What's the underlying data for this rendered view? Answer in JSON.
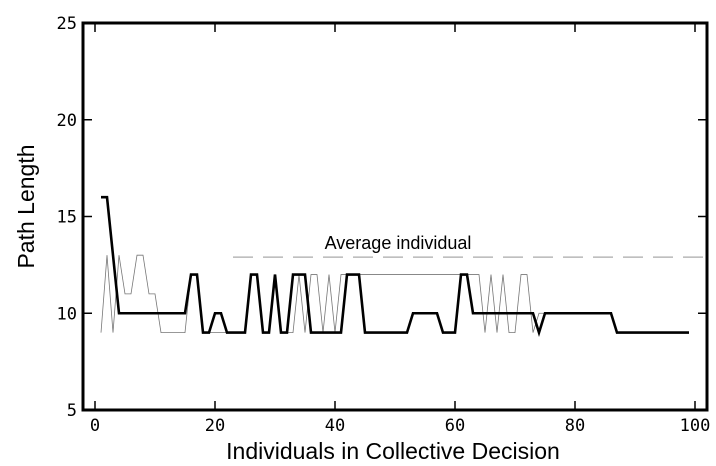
{
  "chart_data": {
    "type": "line",
    "xlabel": "Individuals in Collective Decision",
    "ylabel": "Path Length",
    "xlim": [
      -2,
      102
    ],
    "ylim": [
      5,
      25
    ],
    "xticks": [
      0,
      20,
      40,
      60,
      80,
      100
    ],
    "yticks": [
      5,
      10,
      15,
      20,
      25
    ],
    "grid": false,
    "series": [
      {
        "style": "thin",
        "color": "#777777",
        "points": [
          [
            1,
            9
          ],
          [
            2,
            13
          ],
          [
            3,
            9
          ],
          [
            4,
            13
          ],
          [
            5,
            11
          ],
          [
            6,
            11
          ],
          [
            7,
            13
          ],
          [
            8,
            13
          ],
          [
            9,
            11
          ],
          [
            10,
            11
          ],
          [
            11,
            9
          ],
          [
            12,
            9
          ],
          [
            13,
            9
          ],
          [
            14,
            9
          ],
          [
            15,
            9
          ],
          [
            16,
            12
          ],
          [
            17,
            12
          ],
          [
            18,
            9
          ],
          [
            19,
            9
          ],
          [
            20,
            9
          ],
          [
            21,
            9
          ],
          [
            22,
            9
          ],
          [
            23,
            9
          ],
          [
            24,
            9
          ],
          [
            25,
            9
          ],
          [
            26,
            12
          ],
          [
            27,
            12
          ],
          [
            28,
            9
          ],
          [
            29,
            9
          ],
          [
            30,
            12
          ],
          [
            31,
            9
          ],
          [
            32,
            9
          ],
          [
            33,
            9
          ],
          [
            34,
            12
          ],
          [
            35,
            9
          ],
          [
            36,
            12
          ],
          [
            37,
            12
          ],
          [
            38,
            9
          ],
          [
            39,
            12
          ],
          [
            40,
            9
          ],
          [
            41,
            12
          ],
          [
            42,
            12
          ],
          [
            43,
            12
          ],
          [
            44,
            12
          ],
          [
            45,
            12
          ],
          [
            46,
            12
          ],
          [
            47,
            12
          ],
          [
            48,
            12
          ],
          [
            49,
            12
          ],
          [
            50,
            12
          ],
          [
            51,
            12
          ],
          [
            52,
            12
          ],
          [
            53,
            12
          ],
          [
            54,
            12
          ],
          [
            55,
            12
          ],
          [
            56,
            12
          ],
          [
            57,
            12
          ],
          [
            58,
            12
          ],
          [
            59,
            12
          ],
          [
            60,
            12
          ],
          [
            61,
            12
          ],
          [
            62,
            12
          ],
          [
            63,
            12
          ],
          [
            64,
            12
          ],
          [
            65,
            9
          ],
          [
            66,
            12
          ],
          [
            67,
            9
          ],
          [
            68,
            12
          ],
          [
            69,
            9
          ],
          [
            70,
            9
          ],
          [
            71,
            12
          ],
          [
            72,
            12
          ],
          [
            73,
            9
          ],
          [
            74,
            10
          ],
          [
            75,
            10
          ],
          [
            76,
            10
          ],
          [
            77,
            10
          ],
          [
            78,
            10
          ],
          [
            79,
            10
          ],
          [
            80,
            10
          ],
          [
            81,
            10
          ],
          [
            82,
            10
          ],
          [
            83,
            10
          ],
          [
            84,
            10
          ],
          [
            85,
            10
          ],
          [
            86,
            10
          ],
          [
            87,
            9
          ],
          [
            88,
            9
          ],
          [
            89,
            9
          ],
          [
            90,
            9
          ],
          [
            91,
            9
          ],
          [
            92,
            9
          ],
          [
            93,
            9
          ],
          [
            94,
            9
          ],
          [
            95,
            9
          ],
          [
            96,
            9
          ],
          [
            97,
            9
          ],
          [
            98,
            9
          ],
          [
            99,
            9
          ]
        ]
      },
      {
        "style": "thick",
        "color": "#000000",
        "points": [
          [
            1,
            16
          ],
          [
            2,
            16
          ],
          [
            3,
            13
          ],
          [
            4,
            10
          ],
          [
            5,
            10
          ],
          [
            6,
            10
          ],
          [
            7,
            10
          ],
          [
            8,
            10
          ],
          [
            9,
            10
          ],
          [
            10,
            10
          ],
          [
            11,
            10
          ],
          [
            12,
            10
          ],
          [
            13,
            10
          ],
          [
            14,
            10
          ],
          [
            15,
            10
          ],
          [
            16,
            12
          ],
          [
            17,
            12
          ],
          [
            18,
            9
          ],
          [
            19,
            9
          ],
          [
            20,
            10
          ],
          [
            21,
            10
          ],
          [
            22,
            9
          ],
          [
            23,
            9
          ],
          [
            24,
            9
          ],
          [
            25,
            9
          ],
          [
            26,
            12
          ],
          [
            27,
            12
          ],
          [
            28,
            9
          ],
          [
            29,
            9
          ],
          [
            30,
            12
          ],
          [
            31,
            9
          ],
          [
            32,
            9
          ],
          [
            33,
            12
          ],
          [
            34,
            12
          ],
          [
            35,
            12
          ],
          [
            36,
            9
          ],
          [
            37,
            9
          ],
          [
            38,
            9
          ],
          [
            39,
            9
          ],
          [
            40,
            9
          ],
          [
            41,
            9
          ],
          [
            42,
            12
          ],
          [
            43,
            12
          ],
          [
            44,
            12
          ],
          [
            45,
            9
          ],
          [
            46,
            9
          ],
          [
            47,
            9
          ],
          [
            48,
            9
          ],
          [
            49,
            9
          ],
          [
            50,
            9
          ],
          [
            51,
            9
          ],
          [
            52,
            9
          ],
          [
            53,
            10
          ],
          [
            54,
            10
          ],
          [
            55,
            10
          ],
          [
            56,
            10
          ],
          [
            57,
            10
          ],
          [
            58,
            9
          ],
          [
            59,
            9
          ],
          [
            60,
            9
          ],
          [
            61,
            12
          ],
          [
            62,
            12
          ],
          [
            63,
            10
          ],
          [
            64,
            10
          ],
          [
            65,
            10
          ],
          [
            66,
            10
          ],
          [
            67,
            10
          ],
          [
            68,
            10
          ],
          [
            69,
            10
          ],
          [
            70,
            10
          ],
          [
            71,
            10
          ],
          [
            72,
            10
          ],
          [
            73,
            10
          ],
          [
            74,
            9
          ],
          [
            75,
            10
          ],
          [
            76,
            10
          ],
          [
            77,
            10
          ],
          [
            78,
            10
          ],
          [
            79,
            10
          ],
          [
            80,
            10
          ],
          [
            81,
            10
          ],
          [
            82,
            10
          ],
          [
            83,
            10
          ],
          [
            84,
            10
          ],
          [
            85,
            10
          ],
          [
            86,
            10
          ],
          [
            87,
            9
          ],
          [
            88,
            9
          ],
          [
            89,
            9
          ],
          [
            90,
            9
          ],
          [
            91,
            9
          ],
          [
            92,
            9
          ],
          [
            93,
            9
          ],
          [
            94,
            9
          ],
          [
            95,
            9
          ],
          [
            96,
            9
          ],
          [
            97,
            9
          ],
          [
            98,
            9
          ],
          [
            99,
            9
          ]
        ]
      }
    ],
    "reference_line": {
      "label": "Average individual",
      "y": 12.9,
      "x_start": 23,
      "x_end": 102,
      "style": "dashed",
      "color": "#aaaaaa"
    }
  }
}
